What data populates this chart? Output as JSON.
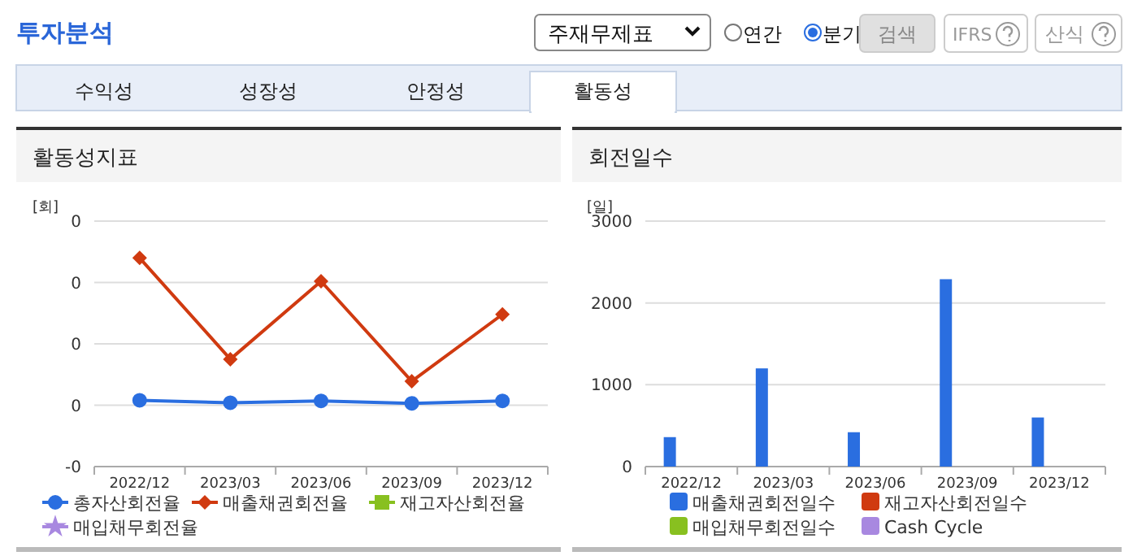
{
  "chart_data": [
    {
      "type": "other",
      "title": "투자분석",
      "annotations": [
        "주재무제표",
        "연간",
        "분기",
        "검색",
        "IFRS",
        "산식",
        "수익성",
        "성장성",
        "안정성",
        "활동성"
      ]
    },
    {
      "type": "line",
      "title": "활동성지표",
      "ylabel": "[회]",
      "categories": [
        "2022/12",
        "2023/03",
        "2023/06",
        "2023/09",
        "2023/12"
      ],
      "ylim": [
        -0.1,
        0.3
      ],
      "yticks": [
        {
          "value": -0.1,
          "label": "-0"
        },
        {
          "value": 0,
          "label": "0"
        },
        {
          "value": 0.1,
          "label": "0"
        },
        {
          "value": 0.2,
          "label": "0"
        },
        {
          "value": 0.3,
          "label": "0"
        }
      ],
      "grid": "y",
      "legend": "bottom",
      "series": [
        {
          "name": "총자산회전율",
          "color": "#2a6ee0",
          "marker": "circle",
          "values": [
            0.008,
            0.004,
            0.007,
            0.003,
            0.007
          ]
        },
        {
          "name": "매출채권회전율",
          "color": "#d03a10",
          "marker": "diamond",
          "values": [
            0.24,
            0.075,
            0.202,
            0.039,
            0.148
          ]
        },
        {
          "name": "재고자산회전율",
          "color": "#88c020",
          "marker": "square",
          "values": [
            null,
            null,
            null,
            null,
            null
          ]
        },
        {
          "name": "매입채무회전율",
          "color": "#a888e0",
          "marker": "star",
          "values": [
            null,
            null,
            null,
            null,
            null
          ]
        }
      ]
    },
    {
      "type": "bar",
      "title": "회전일수",
      "ylabel": "[일]",
      "categories": [
        "2022/12",
        "2023/03",
        "2023/06",
        "2023/09",
        "2023/12"
      ],
      "ylim": [
        0,
        3000
      ],
      "yticks": [
        0,
        1000,
        2000,
        3000
      ],
      "grid": "y",
      "legend": "bottom",
      "series": [
        {
          "name": "매출채권회전일수",
          "color": "#2a6ee0",
          "values": [
            360,
            1200,
            420,
            2290,
            600
          ]
        },
        {
          "name": "재고자산회전일수",
          "color": "#d03a10",
          "values": [
            null,
            null,
            null,
            null,
            null
          ]
        },
        {
          "name": "매입채무회전일수",
          "color": "#88c020",
          "values": [
            null,
            null,
            null,
            null,
            null
          ]
        },
        {
          "name": "Cash Cycle",
          "color": "#a888e0",
          "values": [
            null,
            null,
            null,
            null,
            null
          ]
        }
      ]
    }
  ]
}
